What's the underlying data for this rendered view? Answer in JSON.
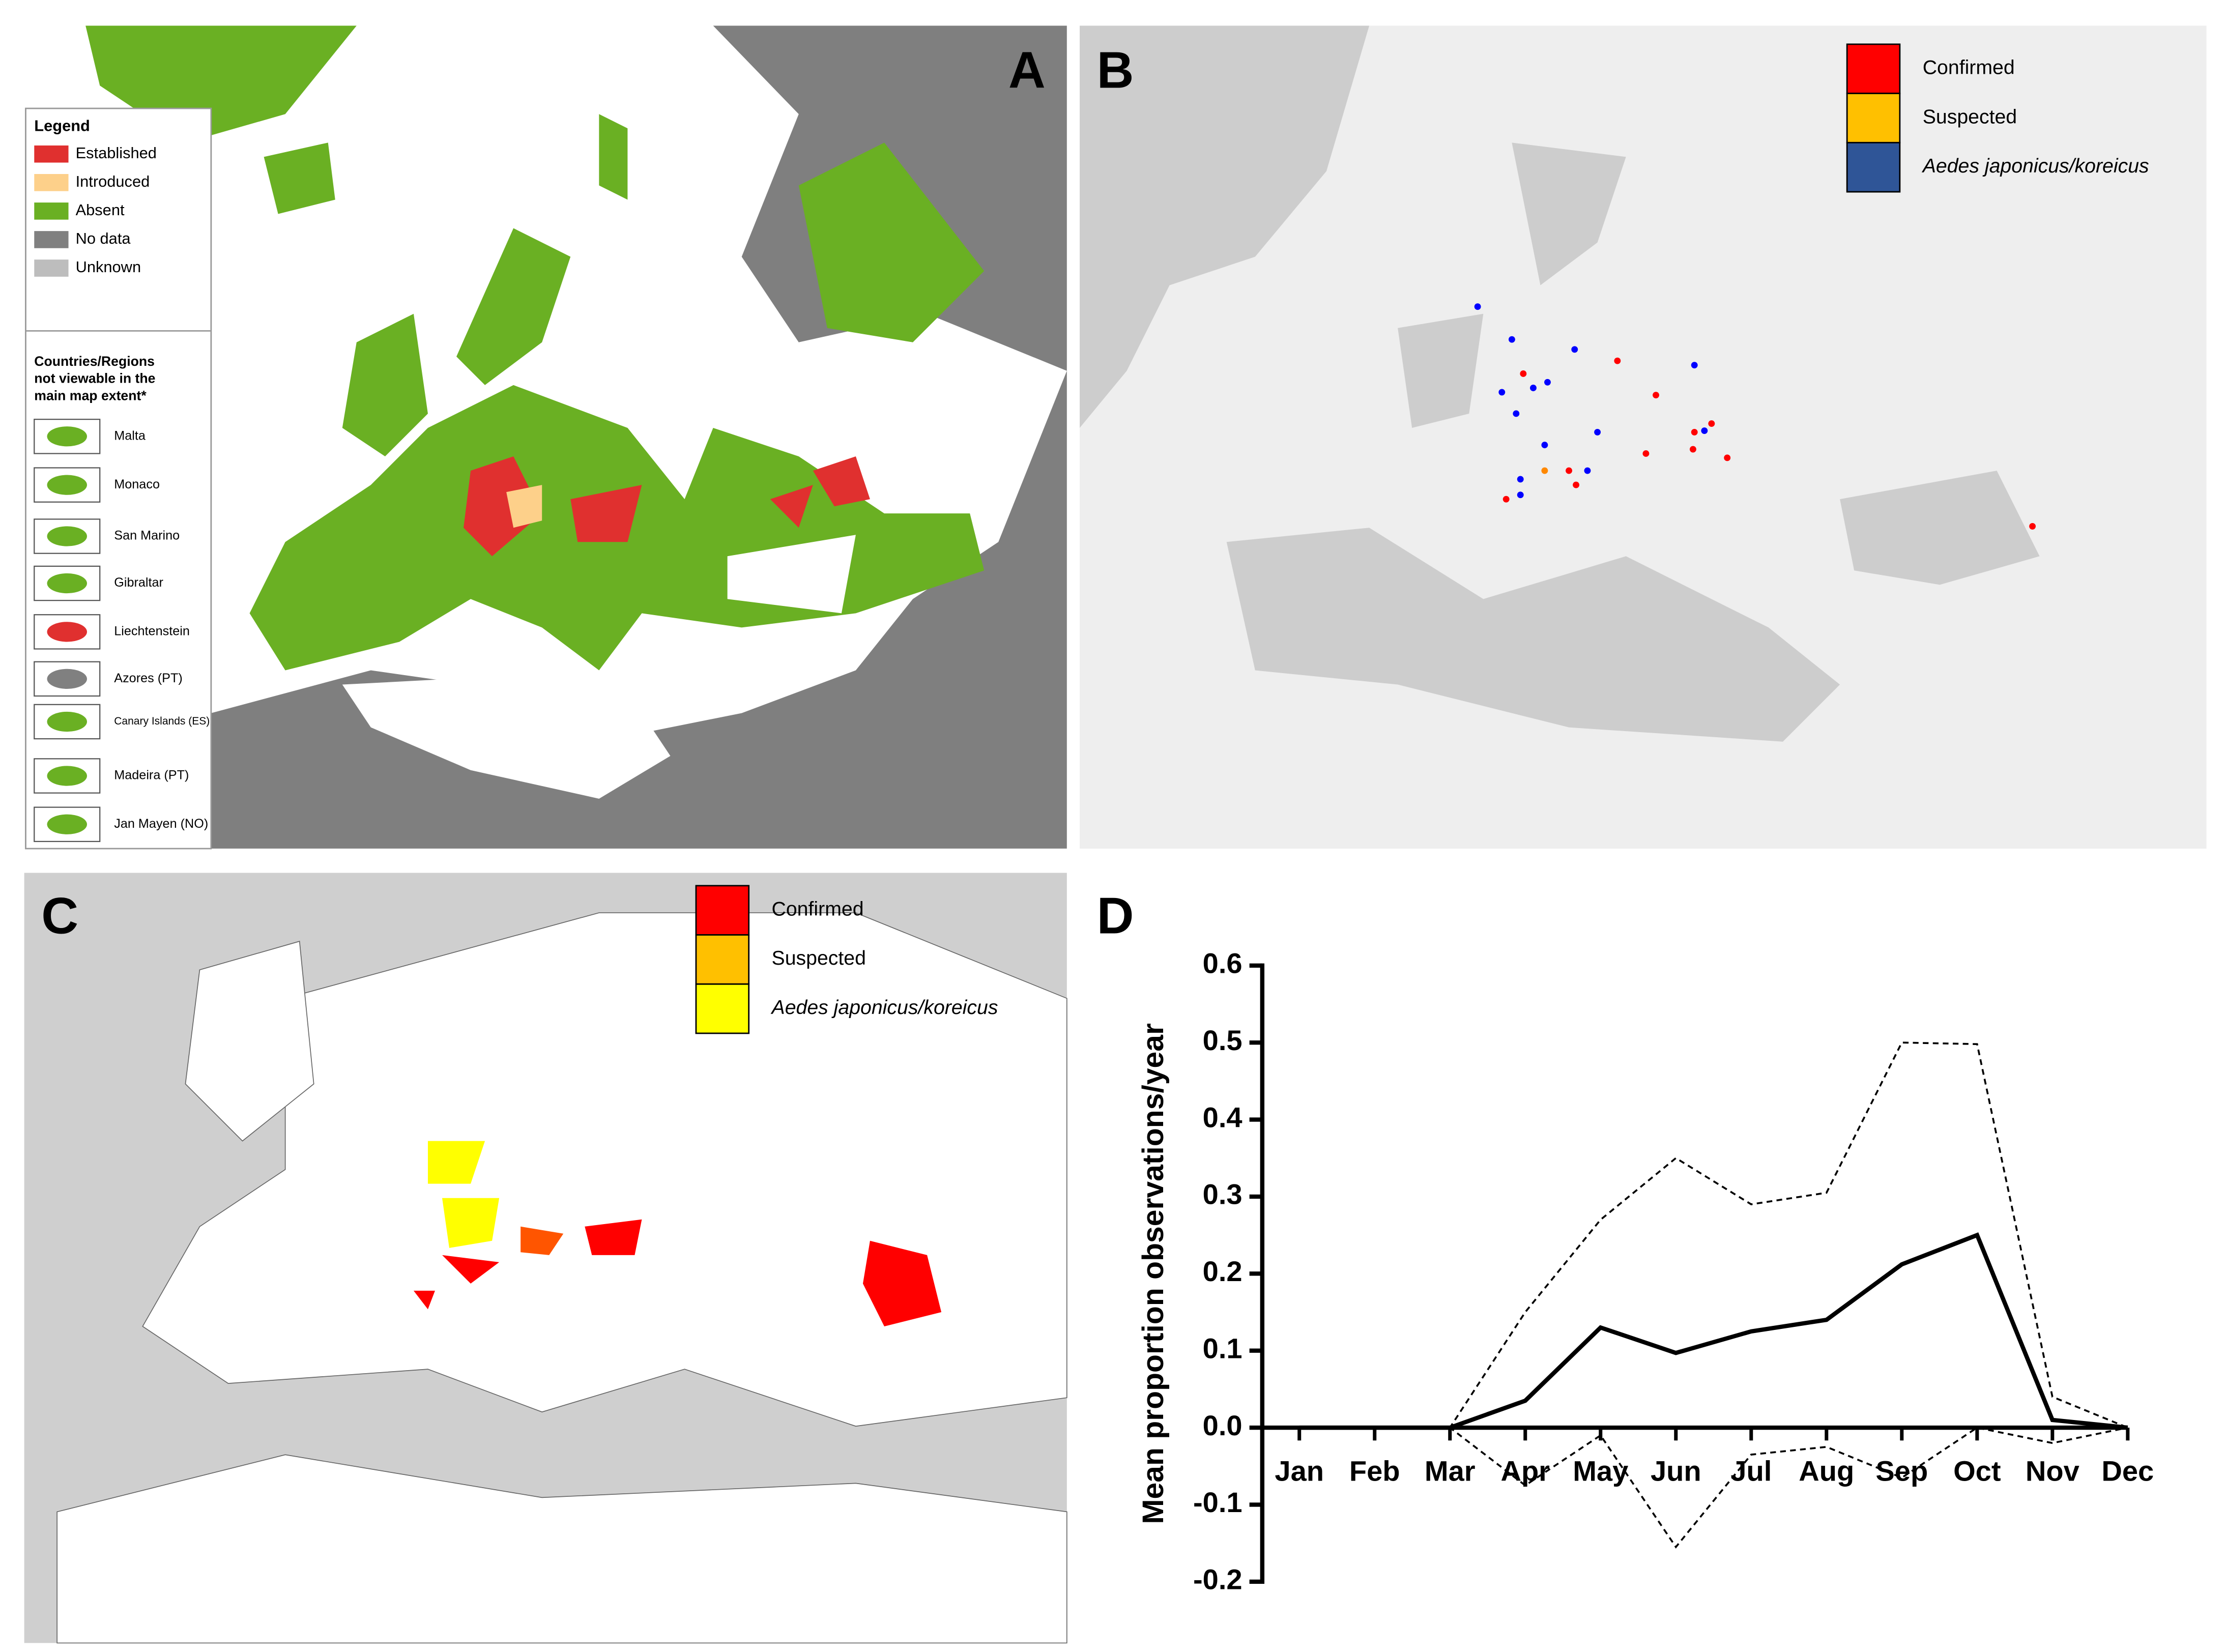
{
  "panels": {
    "a": {
      "label": "A",
      "legend_title": "Legend",
      "legend": [
        {
          "label": "Established",
          "color": "#e0302f"
        },
        {
          "label": "Introduced",
          "color": "#fdd08a"
        },
        {
          "label": "Absent",
          "color": "#6ab023"
        },
        {
          "label": "No data",
          "color": "#808080"
        },
        {
          "label": "Unknown",
          "color": "#bdbdbd"
        }
      ],
      "inset_title_lines": [
        "Countries/Regions",
        "not viewable in the",
        "main map extent*"
      ],
      "insets": [
        "Malta",
        "Monaco",
        "San Marino",
        "Gibraltar",
        "Liechtenstein",
        "Azores (PT)",
        "Canary Islands (ES)",
        "Madeira (PT)",
        "Jan Mayen (NO)"
      ]
    },
    "b": {
      "label": "B",
      "legend": [
        {
          "label": "Confirmed",
          "color": "#ff0000"
        },
        {
          "label": "Suspected",
          "color": "#ffc000"
        },
        {
          "label": "Aedes japonicus/koreicus",
          "color": "#2f5597"
        }
      ]
    },
    "c": {
      "label": "C",
      "legend": [
        {
          "label": "Confirmed",
          "color": "#ff0000"
        },
        {
          "label": "Suspected",
          "color": "#ffc000"
        },
        {
          "label": "Aedes japonicus/koreicus",
          "color": "#ffff00"
        }
      ]
    }
  },
  "chart_data": {
    "type": "line",
    "label": "D",
    "y_label": "Mean proportion observations/year",
    "categories": [
      "Jan",
      "Feb",
      "Mar",
      "Apr",
      "May",
      "Jun",
      "Jul",
      "Aug",
      "Sep",
      "Oct",
      "Nov",
      "Dec"
    ],
    "series": [
      {
        "color": "#000000",
        "style": "solid",
        "values": [
          0,
          0,
          0,
          0.035,
          0.13,
          0.097,
          0.125,
          0.14,
          0.212,
          0.25,
          0.01,
          0
        ]
      },
      {
        "color": "#000000",
        "style": "dashed",
        "values": [
          0,
          0,
          0,
          0.15,
          0.27,
          0.35,
          0.29,
          0.305,
          0.5,
          0.498,
          0.04,
          0
        ]
      },
      {
        "color": "#000000",
        "style": "dashed",
        "values": [
          0,
          0,
          0,
          -0.075,
          -0.01,
          -0.155,
          -0.035,
          -0.025,
          -0.065,
          0,
          -0.02,
          0
        ]
      }
    ],
    "ylim": [
      -0.2,
      0.6
    ],
    "yticks": [
      -0.2,
      -0.1,
      {
        "value": 0,
        "label": "0.0"
      },
      0.1,
      0.2,
      0.3,
      0.4,
      0.5,
      0.6
    ]
  }
}
